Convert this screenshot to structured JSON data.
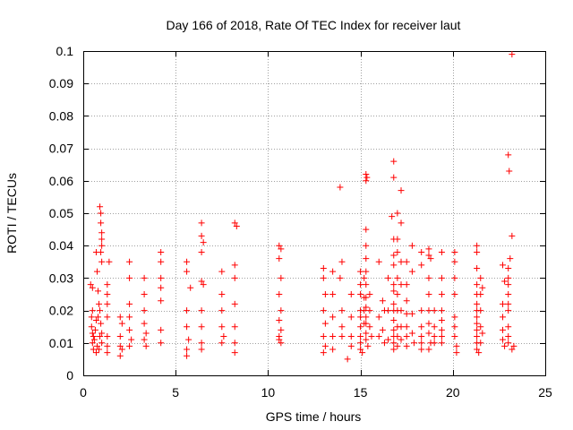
{
  "chart_data": {
    "type": "scatter",
    "title": "Day 166 of 2018, Rate Of TEC Index for receiver laut",
    "xlabel": "GPS time / hours",
    "ylabel": "ROTI / TECUs",
    "xlim": [
      0,
      25
    ],
    "ylim": [
      0,
      0.1
    ],
    "x_ticks": [
      0,
      5,
      10,
      15,
      20,
      25
    ],
    "y_ticks": [
      0,
      0.01,
      0.02,
      0.03,
      0.04,
      0.05,
      0.06,
      0.07,
      0.08,
      0.09,
      0.1
    ],
    "x_tick_labels": [
      "0",
      "5",
      "10",
      "15",
      "20",
      "25"
    ],
    "y_tick_labels": [
      "0",
      "0.01",
      "0.02",
      "0.03",
      "0.04",
      "0.05",
      "0.06",
      "0.07",
      "0.08",
      "0.09",
      "0.1"
    ],
    "grid": true,
    "marker": "+",
    "color": "#ff0000",
    "series": [
      {
        "name": "ROTI",
        "points": [
          [
            0.4,
            0.028
          ],
          [
            0.45,
            0.018
          ],
          [
            0.5,
            0.013
          ],
          [
            0.5,
            0.01
          ],
          [
            0.55,
            0.008
          ],
          [
            0.5,
            0.02
          ],
          [
            0.45,
            0.015
          ],
          [
            0.5,
            0.027
          ],
          [
            0.55,
            0.012
          ],
          [
            0.6,
            0.011
          ],
          [
            0.65,
            0.014
          ],
          [
            0.7,
            0.038
          ],
          [
            0.7,
            0.017
          ],
          [
            0.75,
            0.032
          ],
          [
            0.8,
            0.026
          ],
          [
            0.75,
            0.009
          ],
          [
            0.8,
            0.018
          ],
          [
            0.85,
            0.022
          ],
          [
            0.9,
            0.012
          ],
          [
            0.95,
            0.016
          ],
          [
            0.9,
            0.052
          ],
          [
            0.95,
            0.05
          ],
          [
            0.95,
            0.047
          ],
          [
            1.0,
            0.044
          ],
          [
            1.0,
            0.042
          ],
          [
            1.0,
            0.04
          ],
          [
            0.95,
            0.038
          ],
          [
            1.0,
            0.035
          ],
          [
            0.9,
            0.02
          ],
          [
            1.0,
            0.013
          ],
          [
            1.0,
            0.01
          ],
          [
            0.85,
            0.008
          ],
          [
            0.7,
            0.007
          ],
          [
            1.3,
            0.028
          ],
          [
            1.3,
            0.025
          ],
          [
            1.3,
            0.022
          ],
          [
            1.4,
            0.035
          ],
          [
            1.3,
            0.018
          ],
          [
            1.3,
            0.012
          ],
          [
            1.3,
            0.009
          ],
          [
            1.3,
            0.007
          ],
          [
            2.0,
            0.018
          ],
          [
            2.1,
            0.016
          ],
          [
            2.0,
            0.012
          ],
          [
            2.0,
            0.009
          ],
          [
            2.1,
            0.008
          ],
          [
            2.0,
            0.006
          ],
          [
            2.5,
            0.035
          ],
          [
            2.5,
            0.03
          ],
          [
            2.5,
            0.022
          ],
          [
            2.5,
            0.018
          ],
          [
            2.5,
            0.014
          ],
          [
            2.6,
            0.011
          ],
          [
            2.5,
            0.009
          ],
          [
            3.3,
            0.03
          ],
          [
            3.3,
            0.025
          ],
          [
            3.3,
            0.02
          ],
          [
            3.3,
            0.016
          ],
          [
            3.4,
            0.013
          ],
          [
            3.3,
            0.011
          ],
          [
            3.4,
            0.009
          ],
          [
            4.2,
            0.038
          ],
          [
            4.2,
            0.035
          ],
          [
            4.2,
            0.03
          ],
          [
            4.2,
            0.027
          ],
          [
            4.2,
            0.023
          ],
          [
            4.2,
            0.014
          ],
          [
            4.2,
            0.01
          ],
          [
            5.6,
            0.035
          ],
          [
            5.6,
            0.032
          ],
          [
            5.6,
            0.02
          ],
          [
            5.6,
            0.015
          ],
          [
            5.7,
            0.011
          ],
          [
            5.6,
            0.008
          ],
          [
            5.6,
            0.006
          ],
          [
            5.8,
            0.027
          ],
          [
            6.4,
            0.047
          ],
          [
            6.4,
            0.043
          ],
          [
            6.5,
            0.041
          ],
          [
            6.4,
            0.038
          ],
          [
            6.4,
            0.029
          ],
          [
            6.5,
            0.028
          ],
          [
            6.4,
            0.02
          ],
          [
            6.4,
            0.015
          ],
          [
            6.4,
            0.01
          ],
          [
            6.4,
            0.008
          ],
          [
            7.5,
            0.032
          ],
          [
            7.5,
            0.025
          ],
          [
            7.5,
            0.02
          ],
          [
            7.5,
            0.015
          ],
          [
            7.6,
            0.012
          ],
          [
            7.5,
            0.01
          ],
          [
            8.2,
            0.047
          ],
          [
            8.3,
            0.046
          ],
          [
            8.2,
            0.034
          ],
          [
            8.2,
            0.03
          ],
          [
            8.2,
            0.022
          ],
          [
            8.2,
            0.015
          ],
          [
            8.2,
            0.01
          ],
          [
            8.2,
            0.007
          ],
          [
            10.6,
            0.04
          ],
          [
            10.7,
            0.039
          ],
          [
            10.6,
            0.036
          ],
          [
            10.7,
            0.03
          ],
          [
            10.6,
            0.025
          ],
          [
            10.7,
            0.02
          ],
          [
            10.6,
            0.017
          ],
          [
            10.7,
            0.014
          ],
          [
            10.6,
            0.012
          ],
          [
            10.7,
            0.01
          ],
          [
            10.6,
            0.011
          ],
          [
            13.0,
            0.033
          ],
          [
            13.0,
            0.03
          ],
          [
            13.1,
            0.025
          ],
          [
            13.0,
            0.02
          ],
          [
            13.1,
            0.016
          ],
          [
            13.0,
            0.012
          ],
          [
            13.1,
            0.009
          ],
          [
            13.0,
            0.007
          ],
          [
            13.5,
            0.032
          ],
          [
            13.5,
            0.025
          ],
          [
            13.5,
            0.018
          ],
          [
            13.5,
            0.012
          ],
          [
            13.5,
            0.008
          ],
          [
            13.9,
            0.058
          ],
          [
            14.0,
            0.035
          ],
          [
            13.9,
            0.03
          ],
          [
            14.0,
            0.02
          ],
          [
            14.0,
            0.015
          ],
          [
            14.0,
            0.012
          ],
          [
            14.3,
            0.005
          ],
          [
            14.5,
            0.025
          ],
          [
            14.5,
            0.018
          ],
          [
            14.5,
            0.012
          ],
          [
            14.5,
            0.009
          ],
          [
            15.0,
            0.032
          ],
          [
            15.0,
            0.028
          ],
          [
            15.0,
            0.025
          ],
          [
            15.0,
            0.02
          ],
          [
            15.0,
            0.018
          ],
          [
            15.0,
            0.015
          ],
          [
            15.0,
            0.012
          ],
          [
            15.0,
            0.01
          ],
          [
            15.0,
            0.008
          ],
          [
            15.1,
            0.007
          ],
          [
            15.2,
            0.02
          ],
          [
            15.2,
            0.03
          ],
          [
            15.2,
            0.024
          ],
          [
            15.2,
            0.016
          ],
          [
            15.3,
            0.062
          ],
          [
            15.3,
            0.06
          ],
          [
            15.35,
            0.061
          ],
          [
            15.3,
            0.045
          ],
          [
            15.3,
            0.04
          ],
          [
            15.3,
            0.036
          ],
          [
            15.3,
            0.032
          ],
          [
            15.3,
            0.028
          ],
          [
            15.3,
            0.024
          ],
          [
            15.3,
            0.021
          ],
          [
            15.3,
            0.018
          ],
          [
            15.3,
            0.016
          ],
          [
            15.3,
            0.013
          ],
          [
            15.3,
            0.011
          ],
          [
            15.4,
            0.009
          ],
          [
            15.5,
            0.025
          ],
          [
            15.5,
            0.02
          ],
          [
            15.5,
            0.015
          ],
          [
            15.6,
            0.012
          ],
          [
            16.0,
            0.035
          ],
          [
            16.0,
            0.018
          ],
          [
            16.0,
            0.012
          ],
          [
            16.2,
            0.023
          ],
          [
            16.3,
            0.02
          ],
          [
            16.2,
            0.014
          ],
          [
            16.3,
            0.01
          ],
          [
            16.5,
            0.03
          ],
          [
            16.5,
            0.02
          ],
          [
            16.5,
            0.011
          ],
          [
            16.7,
            0.049
          ],
          [
            16.8,
            0.066
          ],
          [
            16.8,
            0.061
          ],
          [
            16.8,
            0.042
          ],
          [
            16.8,
            0.037
          ],
          [
            16.8,
            0.034
          ],
          [
            16.8,
            0.028
          ],
          [
            16.8,
            0.026
          ],
          [
            16.8,
            0.022
          ],
          [
            16.8,
            0.02
          ],
          [
            16.8,
            0.017
          ],
          [
            16.8,
            0.014
          ],
          [
            16.8,
            0.012
          ],
          [
            16.8,
            0.01
          ],
          [
            16.8,
            0.008
          ],
          [
            17.0,
            0.05
          ],
          [
            17.0,
            0.042
          ],
          [
            17.0,
            0.038
          ],
          [
            17.0,
            0.03
          ],
          [
            17.0,
            0.025
          ],
          [
            17.0,
            0.02
          ],
          [
            17.0,
            0.015
          ],
          [
            17.0,
            0.012
          ],
          [
            17.0,
            0.009
          ],
          [
            17.2,
            0.057
          ],
          [
            17.2,
            0.047
          ],
          [
            17.2,
            0.035
          ],
          [
            17.2,
            0.028
          ],
          [
            17.2,
            0.02
          ],
          [
            17.2,
            0.015
          ],
          [
            17.2,
            0.011
          ],
          [
            17.5,
            0.035
          ],
          [
            17.5,
            0.028
          ],
          [
            17.5,
            0.023
          ],
          [
            17.5,
            0.019
          ],
          [
            17.5,
            0.015
          ],
          [
            17.5,
            0.012
          ],
          [
            17.5,
            0.009
          ],
          [
            17.8,
            0.04
          ],
          [
            17.8,
            0.032
          ],
          [
            17.8,
            0.019
          ],
          [
            17.8,
            0.013
          ],
          [
            17.9,
            0.01
          ],
          [
            18.3,
            0.038
          ],
          [
            18.3,
            0.034
          ],
          [
            18.3,
            0.02
          ],
          [
            18.3,
            0.015
          ],
          [
            18.3,
            0.012
          ],
          [
            18.3,
            0.01
          ],
          [
            18.3,
            0.008
          ],
          [
            18.7,
            0.039
          ],
          [
            18.7,
            0.037
          ],
          [
            18.8,
            0.036
          ],
          [
            18.7,
            0.03
          ],
          [
            18.7,
            0.025
          ],
          [
            18.7,
            0.02
          ],
          [
            18.7,
            0.016
          ],
          [
            18.7,
            0.013
          ],
          [
            18.8,
            0.01
          ],
          [
            18.7,
            0.008
          ],
          [
            19.0,
            0.02
          ],
          [
            19.0,
            0.015
          ],
          [
            19.0,
            0.012
          ],
          [
            19.0,
            0.01
          ],
          [
            19.4,
            0.038
          ],
          [
            19.4,
            0.03
          ],
          [
            19.4,
            0.025
          ],
          [
            19.4,
            0.02
          ],
          [
            19.4,
            0.017
          ],
          [
            19.4,
            0.014
          ],
          [
            19.4,
            0.012
          ],
          [
            19.4,
            0.01
          ],
          [
            20.1,
            0.038
          ],
          [
            20.1,
            0.035
          ],
          [
            20.1,
            0.03
          ],
          [
            20.1,
            0.025
          ],
          [
            20.1,
            0.018
          ],
          [
            20.1,
            0.015
          ],
          [
            20.1,
            0.012
          ],
          [
            20.2,
            0.009
          ],
          [
            20.2,
            0.007
          ],
          [
            21.3,
            0.04
          ],
          [
            21.3,
            0.038
          ],
          [
            21.3,
            0.033
          ],
          [
            21.3,
            0.028
          ],
          [
            21.3,
            0.025
          ],
          [
            21.3,
            0.022
          ],
          [
            21.3,
            0.02
          ],
          [
            21.3,
            0.018
          ],
          [
            21.3,
            0.016
          ],
          [
            21.3,
            0.014
          ],
          [
            21.3,
            0.012
          ],
          [
            21.3,
            0.01
          ],
          [
            21.3,
            0.008
          ],
          [
            21.4,
            0.007
          ],
          [
            21.5,
            0.03
          ],
          [
            21.5,
            0.025
          ],
          [
            21.5,
            0.02
          ],
          [
            21.5,
            0.015
          ],
          [
            21.5,
            0.01
          ],
          [
            21.6,
            0.027
          ],
          [
            21.6,
            0.013
          ],
          [
            22.7,
            0.034
          ],
          [
            22.8,
            0.029
          ],
          [
            22.7,
            0.022
          ],
          [
            22.7,
            0.018
          ],
          [
            22.7,
            0.014
          ],
          [
            22.7,
            0.011
          ],
          [
            22.8,
            0.009
          ],
          [
            23.0,
            0.068
          ],
          [
            23.05,
            0.063
          ],
          [
            23.1,
            0.036
          ],
          [
            23.0,
            0.033
          ],
          [
            23.0,
            0.03
          ],
          [
            23.0,
            0.028
          ],
          [
            23.0,
            0.025
          ],
          [
            23.0,
            0.022
          ],
          [
            23.0,
            0.02
          ],
          [
            23.0,
            0.015
          ],
          [
            23.0,
            0.012
          ],
          [
            23.0,
            0.01
          ],
          [
            23.2,
            0.043
          ],
          [
            23.2,
            0.099
          ],
          [
            23.2,
            0.008
          ],
          [
            23.3,
            0.009
          ]
        ]
      }
    ]
  }
}
